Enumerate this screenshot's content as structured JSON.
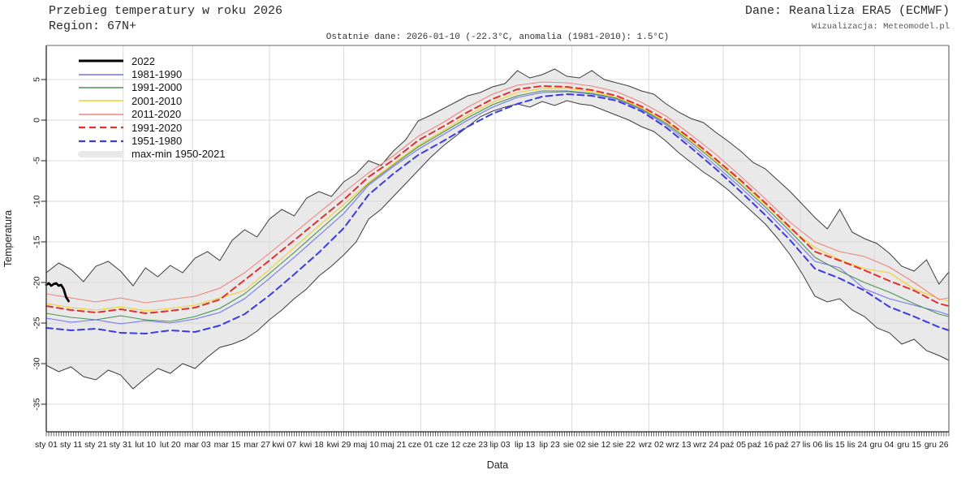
{
  "header": {
    "title": "Przebieg temperatury w roku 2026",
    "region": "Region: 67N+",
    "source": "Dane: Reanaliza ERA5 (ECMWF)",
    "credit": "Wizualizacja: Meteomodel.pl",
    "subtitle": "Ostatnie dane: 2026-01-10 (-22.3°C, anomalia (1981-2010): 1.5°C)"
  },
  "chart_data": {
    "type": "line",
    "title": "Przebieg temperatury w roku 2026",
    "xlabel": "Data",
    "ylabel": "Temperatura",
    "x_unit": "day_of_year",
    "ylim": [
      -38,
      9
    ],
    "grid": true,
    "grid_color": "#d9d9d9",
    "axis_color": "#333333",
    "legend_position": "top-left-inside",
    "y_ticks": [
      5,
      0,
      -5,
      -10,
      -15,
      -20,
      -25,
      -30,
      -35
    ],
    "month_gridline_days": [
      32,
      60,
      91,
      121,
      152,
      182,
      213,
      244,
      274,
      305,
      335
    ],
    "x_ticks": [
      {
        "label": "sty 01",
        "day": 1
      },
      {
        "label": "sty 11",
        "day": 11
      },
      {
        "label": "sty 21",
        "day": 21
      },
      {
        "label": "sty 31",
        "day": 31
      },
      {
        "label": "lut 10",
        "day": 41
      },
      {
        "label": "lut 20",
        "day": 51
      },
      {
        "label": "mar 03",
        "day": 62
      },
      {
        "label": "mar 15",
        "day": 74
      },
      {
        "label": "mar 27",
        "day": 86
      },
      {
        "label": "kwi 07",
        "day": 97
      },
      {
        "label": "kwi 18",
        "day": 108
      },
      {
        "label": "kwi 29",
        "day": 119
      },
      {
        "label": "maj 10",
        "day": 130
      },
      {
        "label": "maj 21",
        "day": 141
      },
      {
        "label": "cze 01",
        "day": 152
      },
      {
        "label": "cze 12",
        "day": 163
      },
      {
        "label": "cze 23",
        "day": 174
      },
      {
        "label": "lip 03",
        "day": 184
      },
      {
        "label": "lip 13",
        "day": 194
      },
      {
        "label": "lip 23",
        "day": 204
      },
      {
        "label": "sie 02",
        "day": 214
      },
      {
        "label": "sie 12",
        "day": 224
      },
      {
        "label": "sie 22",
        "day": 234
      },
      {
        "label": "wrz 02",
        "day": 245
      },
      {
        "label": "wrz 13",
        "day": 256
      },
      {
        "label": "wrz 24",
        "day": 267
      },
      {
        "label": "paź 05",
        "day": 278
      },
      {
        "label": "paź 16",
        "day": 289
      },
      {
        "label": "paź 27",
        "day": 300
      },
      {
        "label": "lis 06",
        "day": 310
      },
      {
        "label": "lis 15",
        "day": 319
      },
      {
        "label": "lis 24",
        "day": 328
      },
      {
        "label": "gru 04",
        "day": 338
      },
      {
        "label": "gru 15",
        "day": 349
      },
      {
        "label": "gru 26",
        "day": 360
      }
    ],
    "band": {
      "name": "max-min 1950-2021",
      "fill": "#e9e9e9",
      "edge": "#3c3c3c",
      "days": [
        1,
        6,
        11,
        16,
        21,
        26,
        31,
        36,
        41,
        46,
        51,
        56,
        61,
        66,
        71,
        76,
        81,
        86,
        91,
        96,
        101,
        106,
        111,
        116,
        121,
        126,
        131,
        136,
        141,
        146,
        151,
        156,
        161,
        166,
        171,
        176,
        181,
        186,
        191,
        196,
        201,
        206,
        211,
        216,
        221,
        226,
        231,
        236,
        241,
        246,
        251,
        256,
        261,
        266,
        271,
        276,
        281,
        286,
        291,
        296,
        301,
        306,
        311,
        316,
        321,
        326,
        331,
        336,
        341,
        346,
        351,
        356,
        361,
        365
      ],
      "max": [
        -18.8,
        -17.6,
        -18.4,
        -19.9,
        -18.0,
        -17.4,
        -18.6,
        -20.4,
        -18.2,
        -19.3,
        -17.9,
        -18.8,
        -17.0,
        -16.2,
        -17.3,
        -14.8,
        -13.5,
        -14.4,
        -12.2,
        -11.0,
        -11.8,
        -9.6,
        -8.8,
        -9.4,
        -7.6,
        -6.6,
        -5.0,
        -5.6,
        -3.8,
        -2.4,
        -0.1,
        0.6,
        1.4,
        2.2,
        3.0,
        3.4,
        4.1,
        4.5,
        6.1,
        5.2,
        5.6,
        6.3,
        5.4,
        5.2,
        6.1,
        5.0,
        4.6,
        4.2,
        3.6,
        3.2,
        2.0,
        1.0,
        0.2,
        -0.3,
        -1.5,
        -2.6,
        -3.8,
        -5.2,
        -6.0,
        -7.4,
        -8.8,
        -10.4,
        -12.0,
        -13.4,
        -11.0,
        -13.8,
        -14.6,
        -15.2,
        -16.4,
        -18.0,
        -18.6,
        -17.2,
        -20.2,
        -18.7
      ],
      "min": [
        -30.2,
        -31.0,
        -30.4,
        -31.6,
        -32.0,
        -30.8,
        -31.4,
        -33.1,
        -31.8,
        -30.6,
        -31.2,
        -30.0,
        -30.6,
        -29.2,
        -28.0,
        -27.6,
        -27.0,
        -26.0,
        -24.6,
        -23.4,
        -22.0,
        -20.8,
        -19.2,
        -18.0,
        -16.6,
        -15.0,
        -12.2,
        -11.0,
        -9.4,
        -7.8,
        -6.2,
        -4.6,
        -3.2,
        -2.0,
        -0.8,
        0.4,
        1.1,
        1.6,
        2.0,
        1.6,
        2.3,
        1.8,
        2.4,
        2.0,
        1.8,
        1.2,
        0.6,
        0.0,
        -0.8,
        -1.4,
        -2.6,
        -4.0,
        -5.2,
        -6.4,
        -7.4,
        -8.6,
        -10.0,
        -11.4,
        -12.8,
        -14.6,
        -16.6,
        -19.0,
        -21.7,
        -22.4,
        -22.0,
        -23.4,
        -24.2,
        -25.6,
        -26.2,
        -27.6,
        -27.0,
        -28.4,
        -29.0,
        -29.6
      ]
    },
    "decade_days": [
      1,
      11,
      21,
      31,
      41,
      51,
      61,
      71,
      81,
      91,
      101,
      111,
      121,
      131,
      141,
      151,
      161,
      171,
      181,
      191,
      201,
      211,
      221,
      231,
      241,
      251,
      261,
      271,
      281,
      291,
      301,
      311,
      321,
      331,
      341,
      351,
      361,
      365
    ],
    "series": [
      {
        "name": "1981-1990",
        "color": "#7373f5",
        "width": 1.1,
        "dash": null,
        "values": [
          -24.4,
          -24.9,
          -24.6,
          -25.1,
          -24.7,
          -25.0,
          -24.5,
          -23.7,
          -22.0,
          -19.5,
          -16.9,
          -14.2,
          -11.5,
          -8.0,
          -5.7,
          -3.6,
          -1.8,
          0.0,
          1.6,
          2.8,
          3.4,
          3.5,
          3.2,
          2.6,
          1.3,
          -0.6,
          -3.0,
          -5.6,
          -8.3,
          -11.1,
          -14.2,
          -17.4,
          -18.2,
          -20.8,
          -22.0,
          -22.8,
          -23.6,
          -24.0
        ]
      },
      {
        "name": "1991-2000",
        "color": "#4a9350",
        "width": 1.1,
        "dash": null,
        "values": [
          -23.8,
          -24.3,
          -24.6,
          -24.1,
          -24.6,
          -24.8,
          -24.2,
          -23.2,
          -21.4,
          -18.9,
          -16.3,
          -13.6,
          -10.9,
          -7.8,
          -5.5,
          -3.3,
          -1.5,
          0.3,
          1.9,
          3.0,
          3.6,
          3.6,
          3.3,
          2.7,
          1.4,
          -0.4,
          -2.7,
          -5.2,
          -7.9,
          -10.7,
          -13.7,
          -16.9,
          -18.6,
          -20.0,
          -21.2,
          -22.6,
          -23.9,
          -24.2
        ]
      },
      {
        "name": "2001-2010",
        "color": "#f0d028",
        "width": 1.1,
        "dash": null,
        "values": [
          -22.6,
          -23.1,
          -23.4,
          -23.0,
          -23.5,
          -23.2,
          -22.8,
          -21.9,
          -21.0,
          -18.4,
          -15.7,
          -13.0,
          -10.4,
          -7.7,
          -5.4,
          -3.1,
          -1.3,
          0.6,
          2.2,
          3.4,
          3.9,
          3.9,
          3.5,
          2.8,
          1.5,
          -0.2,
          -2.5,
          -5.0,
          -7.6,
          -10.4,
          -13.4,
          -15.7,
          -17.2,
          -18.3,
          -18.8,
          -20.8,
          -22.0,
          -22.3
        ]
      },
      {
        "name": "2011-2020",
        "color": "#ef837b",
        "width": 1.1,
        "dash": null,
        "values": [
          -21.4,
          -21.9,
          -22.4,
          -21.9,
          -22.5,
          -22.1,
          -21.7,
          -20.7,
          -18.8,
          -16.4,
          -13.9,
          -11.4,
          -8.9,
          -6.5,
          -4.4,
          -2.0,
          -0.3,
          1.6,
          3.2,
          4.3,
          4.7,
          4.6,
          4.2,
          3.5,
          2.2,
          0.5,
          -1.8,
          -4.2,
          -6.9,
          -9.7,
          -12.6,
          -15.0,
          -16.2,
          -16.8,
          -18.1,
          -20.0,
          -22.1,
          -21.9
        ]
      },
      {
        "name": "1991-2020",
        "color": "#e03030",
        "width": 2.0,
        "dash": "8 5",
        "values": [
          -22.9,
          -23.4,
          -23.7,
          -23.3,
          -23.8,
          -23.5,
          -23.1,
          -22.1,
          -19.7,
          -17.3,
          -14.8,
          -12.3,
          -9.8,
          -7.0,
          -4.9,
          -2.5,
          -0.8,
          1.0,
          2.6,
          3.8,
          4.2,
          4.1,
          3.7,
          3.0,
          1.7,
          0.0,
          -2.3,
          -4.8,
          -7.4,
          -10.2,
          -13.2,
          -16.2,
          -17.3,
          -18.5,
          -19.8,
          -21.0,
          -22.6,
          -22.9
        ]
      },
      {
        "name": "1951-1980",
        "color": "#3b3bdf",
        "width": 2.0,
        "dash": "8 5",
        "values": [
          -25.6,
          -25.9,
          -25.7,
          -26.2,
          -26.3,
          -25.9,
          -26.1,
          -25.3,
          -23.9,
          -21.6,
          -19.0,
          -16.3,
          -13.3,
          -9.2,
          -6.6,
          -4.3,
          -2.6,
          -0.8,
          0.8,
          2.0,
          2.9,
          3.2,
          3.0,
          2.4,
          1.1,
          -0.9,
          -3.4,
          -6.0,
          -8.8,
          -11.7,
          -14.8,
          -18.3,
          -19.5,
          -21.0,
          -23.0,
          -24.2,
          -25.5,
          -25.9
        ]
      },
      {
        "name": "2022",
        "color": "#000000",
        "width": 2.8,
        "dash": null,
        "days": [
          1,
          2,
          3,
          4,
          5,
          6,
          7,
          8,
          9,
          10
        ],
        "values": [
          -20.3,
          -20.1,
          -20.4,
          -20.2,
          -20.1,
          -20.4,
          -20.3,
          -20.8,
          -21.8,
          -22.3
        ]
      }
    ],
    "legend_order": [
      "2022",
      "1981-1990",
      "1991-2000",
      "2001-2010",
      "2011-2020",
      "1991-2020",
      "1951-1980",
      "max-min 1950-2021"
    ]
  }
}
